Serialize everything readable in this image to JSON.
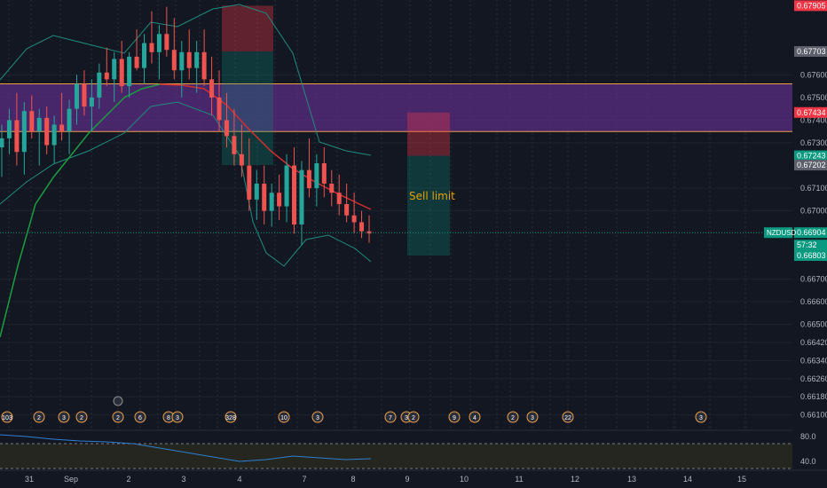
{
  "symbol": "NZDUSD",
  "price_axis": {
    "ticks": [
      "0.67600",
      "0.67500",
      "0.67400",
      "0.67300",
      "0.67100",
      "0.67000",
      "0.66700",
      "0.66600",
      "0.66500",
      "0.66420",
      "0.66340",
      "0.66260",
      "0.66180",
      "0.66100"
    ],
    "tags": [
      {
        "label": "0.67905",
        "color": "#f23645",
        "kind": "price"
      },
      {
        "label": "0.67703",
        "color": "#5d606b",
        "kind": "price"
      },
      {
        "label": "0.67434",
        "color": "#f23645",
        "kind": "price"
      },
      {
        "label": "0.67243",
        "color": "#089981",
        "kind": "price"
      },
      {
        "label": "0.67202",
        "color": "#5d606b",
        "kind": "price"
      },
      {
        "label": "0.66904",
        "color": "#089981",
        "kind": "last"
      },
      {
        "label": "57:32",
        "color": "#089981",
        "kind": "countdown"
      },
      {
        "label": "0.66803",
        "color": "#089981",
        "kind": "price"
      }
    ]
  },
  "date_axis": {
    "labels": [
      "31",
      "Sep",
      "2",
      "3",
      "4",
      "7",
      "8",
      "9",
      "10",
      "11",
      "12",
      "13",
      "14",
      "15"
    ]
  },
  "oscillator": {
    "upper_label": "80.0",
    "lower_label": "40.0"
  },
  "order_label": "Sell limit",
  "event_markers": [
    "103",
    "2",
    "3",
    "2",
    "2",
    "6",
    "8",
    "3",
    "328",
    "10",
    "3",
    "7",
    "3",
    "2",
    "9",
    "4",
    "2",
    "3",
    "22",
    "3"
  ],
  "colors": {
    "background": "#131722",
    "bull": "#26a69a",
    "bear": "#ef5350",
    "zone_purple": "#5b2c83",
    "zone_line": "#f0a04b",
    "ma_green": "#1b9e3e",
    "ma_red": "#d32f2f",
    "bbands": "#1e8c7e",
    "oscillator_line": "#2f7fd3"
  },
  "chart_data": {
    "type": "candlestick",
    "candles": [
      [
        0.6728,
        0.6738,
        0.6715,
        0.6732
      ],
      [
        0.6732,
        0.6745,
        0.6725,
        0.674
      ],
      [
        0.674,
        0.6752,
        0.672,
        0.6726
      ],
      [
        0.6726,
        0.6748,
        0.6716,
        0.6744
      ],
      [
        0.6744,
        0.6751,
        0.6732,
        0.6735
      ],
      [
        0.6735,
        0.6745,
        0.672,
        0.6741
      ],
      [
        0.6741,
        0.6746,
        0.6725,
        0.6729
      ],
      [
        0.6729,
        0.6742,
        0.6721,
        0.6738
      ],
      [
        0.6738,
        0.6752,
        0.6731,
        0.6735
      ],
      [
        0.6735,
        0.6749,
        0.6725,
        0.6745
      ],
      [
        0.6745,
        0.676,
        0.6738,
        0.6756
      ],
      [
        0.6756,
        0.6762,
        0.6742,
        0.6746
      ],
      [
        0.6746,
        0.6758,
        0.6735,
        0.675
      ],
      [
        0.675,
        0.6765,
        0.6745,
        0.6761
      ],
      [
        0.6761,
        0.6772,
        0.6755,
        0.6758
      ],
      [
        0.6758,
        0.677,
        0.6748,
        0.6767
      ],
      [
        0.6767,
        0.6775,
        0.6752,
        0.6755
      ],
      [
        0.6755,
        0.677,
        0.675,
        0.6768
      ],
      [
        0.6768,
        0.678,
        0.6762,
        0.6763
      ],
      [
        0.6763,
        0.6778,
        0.6756,
        0.6774
      ],
      [
        0.6774,
        0.6788,
        0.6765,
        0.677
      ],
      [
        0.677,
        0.6782,
        0.6758,
        0.6778
      ],
      [
        0.6778,
        0.679,
        0.6768,
        0.6771
      ],
      [
        0.6771,
        0.6785,
        0.6758,
        0.6762
      ],
      [
        0.6762,
        0.6775,
        0.675,
        0.677
      ],
      [
        0.677,
        0.678,
        0.6758,
        0.6763
      ],
      [
        0.6763,
        0.6775,
        0.6752,
        0.677
      ],
      [
        0.677,
        0.678,
        0.6755,
        0.6758
      ],
      [
        0.6758,
        0.6768,
        0.6742,
        0.675
      ],
      [
        0.675,
        0.6762,
        0.6735,
        0.674
      ],
      [
        0.674,
        0.6752,
        0.6728,
        0.6733
      ],
      [
        0.6733,
        0.6745,
        0.672,
        0.6725
      ],
      [
        0.6725,
        0.6738,
        0.6715,
        0.672
      ],
      [
        0.672,
        0.6732,
        0.67,
        0.6705
      ],
      [
        0.6705,
        0.6718,
        0.6696,
        0.6712
      ],
      [
        0.6712,
        0.672,
        0.6694,
        0.67
      ],
      [
        0.67,
        0.6712,
        0.6693,
        0.6708
      ],
      [
        0.6708,
        0.6716,
        0.6696,
        0.6702
      ],
      [
        0.6702,
        0.6725,
        0.6695,
        0.672
      ],
      [
        0.672,
        0.6728,
        0.669,
        0.6694
      ],
      [
        0.6694,
        0.6722,
        0.6685,
        0.6718
      ],
      [
        0.6718,
        0.6732,
        0.6706,
        0.671
      ],
      [
        0.671,
        0.6725,
        0.6702,
        0.6721
      ],
      [
        0.6721,
        0.6728,
        0.6706,
        0.6712
      ],
      [
        0.6712,
        0.6718,
        0.6702,
        0.6708
      ],
      [
        0.6708,
        0.6716,
        0.6698,
        0.6703
      ],
      [
        0.6703,
        0.6712,
        0.6695,
        0.6698
      ],
      [
        0.6698,
        0.6708,
        0.669,
        0.6695
      ],
      [
        0.6695,
        0.67,
        0.6688,
        0.6691
      ],
      [
        0.6691,
        0.6698,
        0.6686,
        0.669
      ]
    ],
    "zones": {
      "purple_zone": [
        0.6735,
        0.6756
      ],
      "sell_limit_stop": [
        0.67434,
        0.67243
      ],
      "sell_limit_target": [
        0.67243,
        0.66803
      ],
      "earlier_stop": [
        0.67905,
        0.67703
      ],
      "earlier_target": [
        0.67703,
        0.67202
      ]
    },
    "ylim": [
      0.6604,
      0.6793
    ]
  }
}
